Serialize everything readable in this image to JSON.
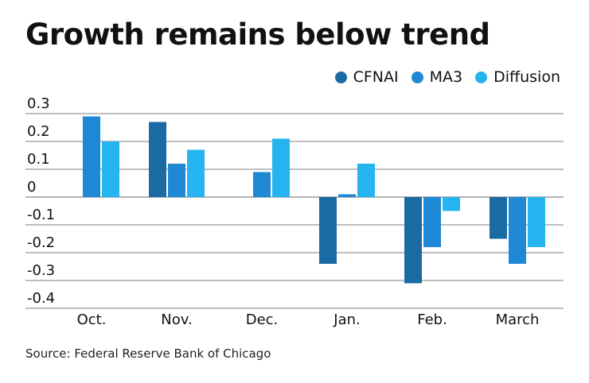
{
  "chart_data": {
    "type": "bar",
    "title": "Growth remains below trend",
    "categories": [
      "Oct.",
      "Nov.",
      "Dec.",
      "Jan.",
      "Feb.",
      "March"
    ],
    "series": [
      {
        "name": "CFNAI",
        "color": "#1a6aa3",
        "values": [
          null,
          0.27,
          null,
          -0.24,
          -0.31,
          -0.15
        ]
      },
      {
        "name": "MA3",
        "color": "#1e88d4",
        "values": [
          0.29,
          0.12,
          0.09,
          0.01,
          -0.18,
          -0.24
        ]
      },
      {
        "name": "Diffusion",
        "color": "#25b4ef",
        "values": [
          0.2,
          0.17,
          0.21,
          0.12,
          -0.05,
          -0.18
        ]
      }
    ],
    "yticks": [
      "0.3",
      "0.2",
      "0.1",
      "0",
      "-0.1",
      "-0.2",
      "-0.3",
      "-0.4"
    ],
    "ylim": [
      -0.4,
      0.3
    ],
    "grid": true,
    "legend": "top-right",
    "source": "Source: Federal Reserve Bank of Chicago"
  }
}
